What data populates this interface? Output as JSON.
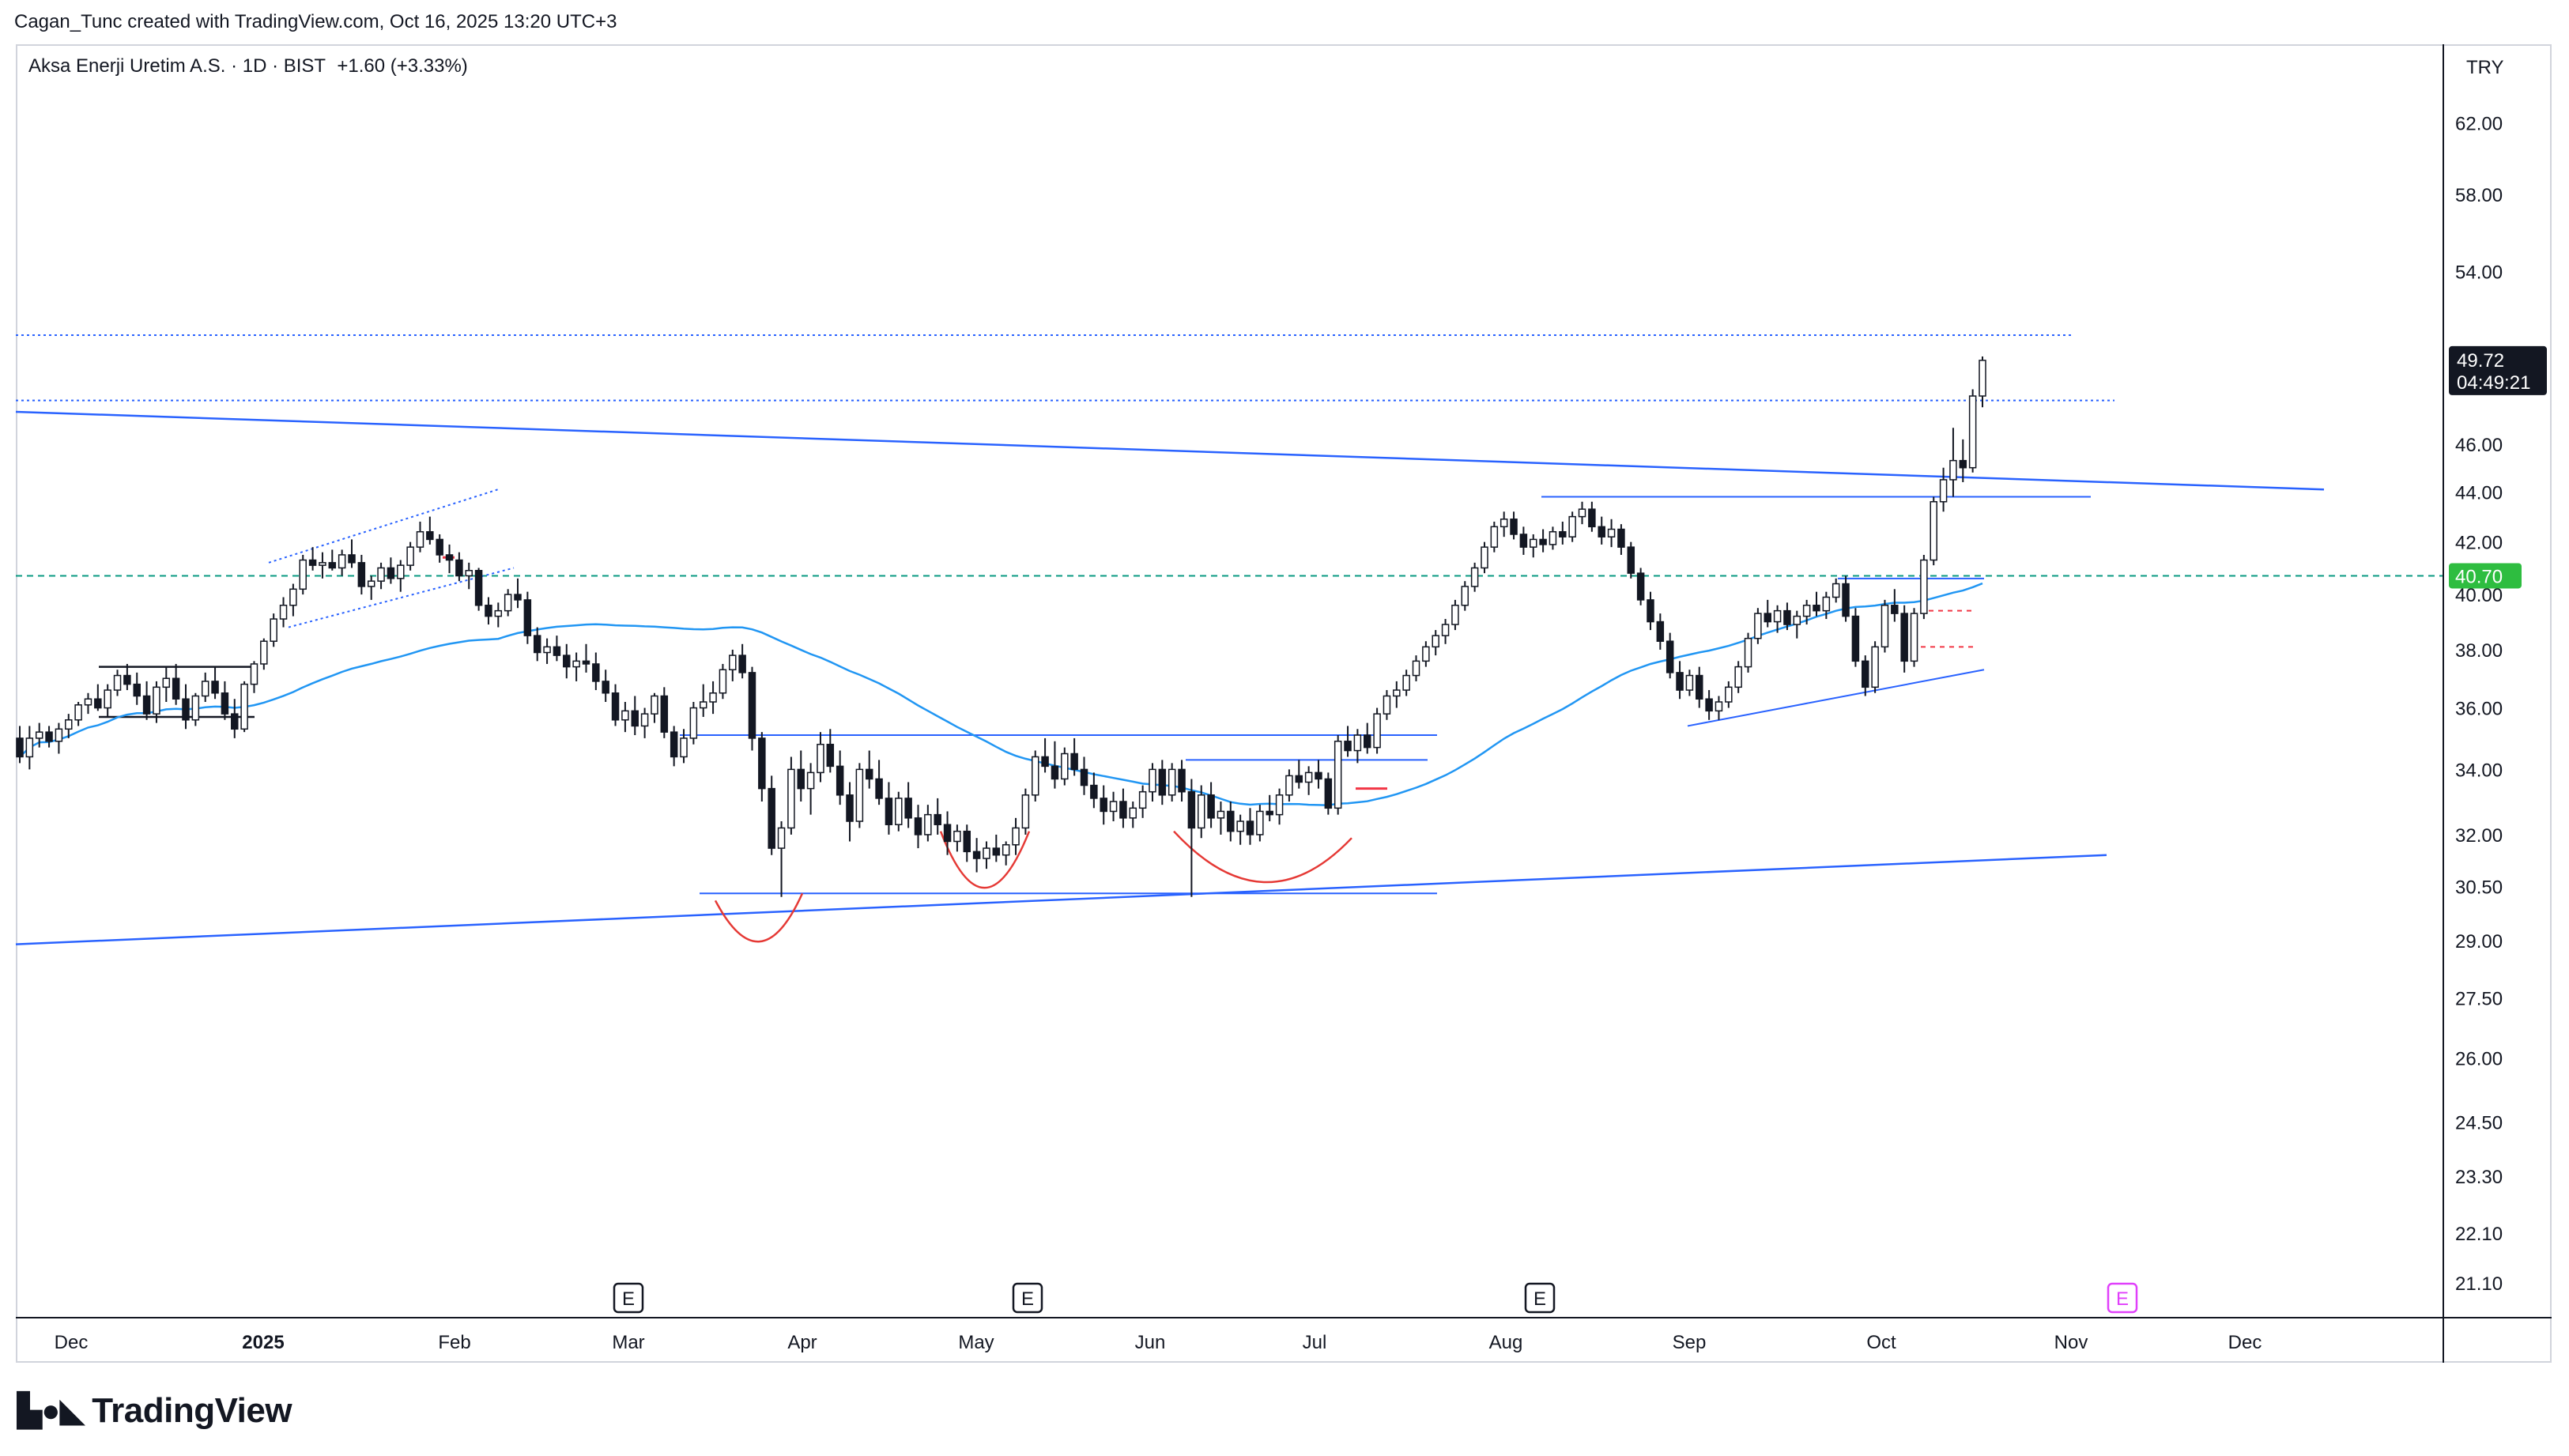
{
  "header": {
    "credit": "Cagan_Tunc created with TradingView.com, Oct 16, 2025 13:20 UTC+3",
    "ticker": "Aksa Enerji Uretim A.S. · 1D · BIST",
    "change": "+1.60 (+3.33%)",
    "currency": "TRY"
  },
  "footer": {
    "brand": "TradingView"
  },
  "colors": {
    "up": "#ffffff",
    "down": "#131722",
    "ma": "#2196f3",
    "trend": "#2962ff",
    "dotted": "#2962ff",
    "green_level": "#089981",
    "red_mark": "#f23645",
    "earnings_future": "#e040fb"
  },
  "chart_data": {
    "type": "candlestick",
    "title": "Aksa Enerji Uretim A.S. · 1D · BIST",
    "scale": "log",
    "y_ticks": [
      "62.00",
      "58.00",
      "54.00",
      "46.00",
      "44.00",
      "42.00",
      "40.00",
      "38.00",
      "36.00",
      "34.00",
      "32.00",
      "30.50",
      "29.00",
      "27.50",
      "26.00",
      "24.50",
      "23.30",
      "22.10",
      "21.10"
    ],
    "x_ticks": [
      "Dec",
      "2025",
      "Feb",
      "Mar",
      "Apr",
      "May",
      "Jun",
      "Jul",
      "Aug",
      "Sep",
      "Oct",
      "Nov",
      "Dec"
    ],
    "last_price": "49.72",
    "countdown": "04:49:21",
    "level_label": "40.70",
    "earnings_markers": [
      "E",
      "E",
      "E",
      "E"
    ],
    "candles_ohlc": [
      [
        35.0,
        35.4,
        34.2,
        34.4
      ],
      [
        34.4,
        35.4,
        34.0,
        35.0
      ],
      [
        35.0,
        35.5,
        34.7,
        35.2
      ],
      [
        35.2,
        35.4,
        34.7,
        34.9
      ],
      [
        34.9,
        35.5,
        34.5,
        35.3
      ],
      [
        35.3,
        35.8,
        35.0,
        35.6
      ],
      [
        35.6,
        36.2,
        35.4,
        36.1
      ],
      [
        36.1,
        36.5,
        35.8,
        36.3
      ],
      [
        36.3,
        36.8,
        35.9,
        36.0
      ],
      [
        36.0,
        36.8,
        35.7,
        36.6
      ],
      [
        36.6,
        37.3,
        36.4,
        37.1
      ],
      [
        37.1,
        37.5,
        36.6,
        36.8
      ],
      [
        36.8,
        37.2,
        36.1,
        36.4
      ],
      [
        36.4,
        36.9,
        35.6,
        35.8
      ],
      [
        35.8,
        36.9,
        35.5,
        36.7
      ],
      [
        36.7,
        37.4,
        36.2,
        37.0
      ],
      [
        37.0,
        37.5,
        36.1,
        36.3
      ],
      [
        36.3,
        36.8,
        35.3,
        35.6
      ],
      [
        35.6,
        36.5,
        35.4,
        36.4
      ],
      [
        36.4,
        37.2,
        36.2,
        36.9
      ],
      [
        36.9,
        37.4,
        36.3,
        36.5
      ],
      [
        36.5,
        36.9,
        35.6,
        35.8
      ],
      [
        35.8,
        36.3,
        35.0,
        35.3
      ],
      [
        35.3,
        36.9,
        35.2,
        36.8
      ],
      [
        36.8,
        37.6,
        36.5,
        37.5
      ],
      [
        37.5,
        38.4,
        37.3,
        38.3
      ],
      [
        38.3,
        39.3,
        38.1,
        39.1
      ],
      [
        39.1,
        39.9,
        38.8,
        39.6
      ],
      [
        39.6,
        40.4,
        39.2,
        40.2
      ],
      [
        40.2,
        41.5,
        40.0,
        41.3
      ],
      [
        41.3,
        41.8,
        40.9,
        41.1
      ],
      [
        41.1,
        41.6,
        40.6,
        41.2
      ],
      [
        41.2,
        41.7,
        40.9,
        41.0
      ],
      [
        41.0,
        41.7,
        40.7,
        41.5
      ],
      [
        41.5,
        42.1,
        41.0,
        41.2
      ],
      [
        41.2,
        41.5,
        40.0,
        40.3
      ],
      [
        40.3,
        40.7,
        39.8,
        40.5
      ],
      [
        40.5,
        41.2,
        40.2,
        41.0
      ],
      [
        41.0,
        41.4,
        40.4,
        40.6
      ],
      [
        40.6,
        41.3,
        40.1,
        41.1
      ],
      [
        41.1,
        42.0,
        40.9,
        41.8
      ],
      [
        41.8,
        42.8,
        41.6,
        42.4
      ],
      [
        42.4,
        43.0,
        41.9,
        42.1
      ],
      [
        42.1,
        42.3,
        41.2,
        41.5
      ],
      [
        41.5,
        41.9,
        40.8,
        41.3
      ],
      [
        41.3,
        41.6,
        40.5,
        40.7
      ],
      [
        40.7,
        41.2,
        40.2,
        40.9
      ],
      [
        40.9,
        41.0,
        39.4,
        39.6
      ],
      [
        39.6,
        39.9,
        38.9,
        39.2
      ],
      [
        39.2,
        39.7,
        38.8,
        39.4
      ],
      [
        39.4,
        40.2,
        39.2,
        40.0
      ],
      [
        40.0,
        40.6,
        39.5,
        39.8
      ],
      [
        39.8,
        40.1,
        38.2,
        38.5
      ],
      [
        38.5,
        38.8,
        37.6,
        37.9
      ],
      [
        37.9,
        38.4,
        37.5,
        38.1
      ],
      [
        38.1,
        38.5,
        37.6,
        37.8
      ],
      [
        37.8,
        38.2,
        37.0,
        37.4
      ],
      [
        37.4,
        37.9,
        36.9,
        37.6
      ],
      [
        37.6,
        38.2,
        37.2,
        37.5
      ],
      [
        37.5,
        37.9,
        36.6,
        36.9
      ],
      [
        36.9,
        37.3,
        36.2,
        36.5
      ],
      [
        36.5,
        36.8,
        35.4,
        35.6
      ],
      [
        35.6,
        36.2,
        35.2,
        35.9
      ],
      [
        35.9,
        36.4,
        35.1,
        35.4
      ],
      [
        35.4,
        36.0,
        35.0,
        35.8
      ],
      [
        35.8,
        36.5,
        35.5,
        36.4
      ],
      [
        36.4,
        36.7,
        35.0,
        35.2
      ],
      [
        35.2,
        35.4,
        34.1,
        34.4
      ],
      [
        34.4,
        35.3,
        34.2,
        35.0
      ],
      [
        35.0,
        36.2,
        34.8,
        36.0
      ],
      [
        36.0,
        36.8,
        35.7,
        36.2
      ],
      [
        36.2,
        36.9,
        35.8,
        36.5
      ],
      [
        36.5,
        37.5,
        36.3,
        37.3
      ],
      [
        37.3,
        38.0,
        36.9,
        37.8
      ],
      [
        37.8,
        38.2,
        37.0,
        37.2
      ],
      [
        37.2,
        37.4,
        34.6,
        35.0
      ],
      [
        35.0,
        35.2,
        33.0,
        33.4
      ],
      [
        33.4,
        33.8,
        31.4,
        31.6
      ],
      [
        31.6,
        32.4,
        30.2,
        32.2
      ],
      [
        32.2,
        34.4,
        32.0,
        34.0
      ],
      [
        34.0,
        34.6,
        33.0,
        33.4
      ],
      [
        33.4,
        34.2,
        32.6,
        33.9
      ],
      [
        33.9,
        35.2,
        33.6,
        34.8
      ],
      [
        34.8,
        35.3,
        33.9,
        34.1
      ],
      [
        34.1,
        34.6,
        32.9,
        33.2
      ],
      [
        33.2,
        33.6,
        31.8,
        32.4
      ],
      [
        32.4,
        34.2,
        32.2,
        34.0
      ],
      [
        34.0,
        34.6,
        33.4,
        33.7
      ],
      [
        33.7,
        34.3,
        32.9,
        33.1
      ],
      [
        33.1,
        33.6,
        32.0,
        32.3
      ],
      [
        32.3,
        33.3,
        32.1,
        33.1
      ],
      [
        33.1,
        33.6,
        32.2,
        32.5
      ],
      [
        32.5,
        32.9,
        31.6,
        32.0
      ],
      [
        32.0,
        32.9,
        31.8,
        32.6
      ],
      [
        32.6,
        33.1,
        32.0,
        32.3
      ],
      [
        32.3,
        32.7,
        31.4,
        31.8
      ],
      [
        31.8,
        32.3,
        31.5,
        32.1
      ],
      [
        32.1,
        32.3,
        31.2,
        31.5
      ],
      [
        31.5,
        31.9,
        30.9,
        31.3
      ],
      [
        31.3,
        31.8,
        31.0,
        31.6
      ],
      [
        31.6,
        32.0,
        31.2,
        31.4
      ],
      [
        31.4,
        31.8,
        31.1,
        31.7
      ],
      [
        31.7,
        32.5,
        31.4,
        32.2
      ],
      [
        32.2,
        33.4,
        32.0,
        33.2
      ],
      [
        33.2,
        34.6,
        33.0,
        34.4
      ],
      [
        34.4,
        35.0,
        33.9,
        34.1
      ],
      [
        34.1,
        34.9,
        33.4,
        33.7
      ],
      [
        33.7,
        34.7,
        33.5,
        34.5
      ],
      [
        34.5,
        35.0,
        33.8,
        34.0
      ],
      [
        34.0,
        34.4,
        33.2,
        33.5
      ],
      [
        33.5,
        33.9,
        32.8,
        33.1
      ],
      [
        33.1,
        33.5,
        32.3,
        32.7
      ],
      [
        32.7,
        33.3,
        32.4,
        33.0
      ],
      [
        33.0,
        33.4,
        32.2,
        32.5
      ],
      [
        32.5,
        33.0,
        32.2,
        32.8
      ],
      [
        32.8,
        33.5,
        32.5,
        33.3
      ],
      [
        33.3,
        34.2,
        33.0,
        34.0
      ],
      [
        34.0,
        34.3,
        32.9,
        33.2
      ],
      [
        33.2,
        34.2,
        33.0,
        34.0
      ],
      [
        34.0,
        34.3,
        33.0,
        33.3
      ],
      [
        33.3,
        33.7,
        30.2,
        32.2
      ],
      [
        32.2,
        33.5,
        31.9,
        33.2
      ],
      [
        33.2,
        33.6,
        32.2,
        32.5
      ],
      [
        32.5,
        33.0,
        32.0,
        32.7
      ],
      [
        32.7,
        33.0,
        31.8,
        32.1
      ],
      [
        32.1,
        32.6,
        31.7,
        32.4
      ],
      [
        32.4,
        32.8,
        31.7,
        32.0
      ],
      [
        32.0,
        32.9,
        31.8,
        32.7
      ],
      [
        32.7,
        33.2,
        32.4,
        32.6
      ],
      [
        32.6,
        33.4,
        32.3,
        33.2
      ],
      [
        33.2,
        34.0,
        33.0,
        33.8
      ],
      [
        33.8,
        34.3,
        33.4,
        33.6
      ],
      [
        33.6,
        34.1,
        33.2,
        33.9
      ],
      [
        33.9,
        34.3,
        33.4,
        33.7
      ],
      [
        33.7,
        33.9,
        32.6,
        32.8
      ],
      [
        32.8,
        35.1,
        32.6,
        34.9
      ],
      [
        34.9,
        35.4,
        34.4,
        34.6
      ],
      [
        34.6,
        35.3,
        34.2,
        35.1
      ],
      [
        35.1,
        35.5,
        34.5,
        34.7
      ],
      [
        34.7,
        36.0,
        34.5,
        35.8
      ],
      [
        35.8,
        36.6,
        35.6,
        36.4
      ],
      [
        36.4,
        36.9,
        36.0,
        36.6
      ],
      [
        36.6,
        37.3,
        36.4,
        37.1
      ],
      [
        37.1,
        37.8,
        36.9,
        37.6
      ],
      [
        37.6,
        38.3,
        37.4,
        38.1
      ],
      [
        38.1,
        38.7,
        37.8,
        38.5
      ],
      [
        38.5,
        39.1,
        38.2,
        38.9
      ],
      [
        38.9,
        39.8,
        38.7,
        39.6
      ],
      [
        39.6,
        40.5,
        39.4,
        40.3
      ],
      [
        40.3,
        41.2,
        40.1,
        41.0
      ],
      [
        41.0,
        42.0,
        40.8,
        41.8
      ],
      [
        41.8,
        42.8,
        41.6,
        42.6
      ],
      [
        42.6,
        43.2,
        42.2,
        42.9
      ],
      [
        42.9,
        43.2,
        42.1,
        42.3
      ],
      [
        42.3,
        42.6,
        41.5,
        41.8
      ],
      [
        41.8,
        42.3,
        41.4,
        42.1
      ],
      [
        42.1,
        42.5,
        41.6,
        41.9
      ],
      [
        41.9,
        42.6,
        41.7,
        42.4
      ],
      [
        42.4,
        42.8,
        41.9,
        42.2
      ],
      [
        42.2,
        43.2,
        42.0,
        43.0
      ],
      [
        43.0,
        43.6,
        42.7,
        43.3
      ],
      [
        43.3,
        43.6,
        42.4,
        42.6
      ],
      [
        42.6,
        43.0,
        41.9,
        42.2
      ],
      [
        42.2,
        42.9,
        41.8,
        42.5
      ],
      [
        42.5,
        42.7,
        41.5,
        41.8
      ],
      [
        41.8,
        42.0,
        40.6,
        40.8
      ],
      [
        40.8,
        41.0,
        39.6,
        39.8
      ],
      [
        39.8,
        40.1,
        38.7,
        39.0
      ],
      [
        39.0,
        39.3,
        38.0,
        38.3
      ],
      [
        38.3,
        38.6,
        37.0,
        37.2
      ],
      [
        37.2,
        37.6,
        36.3,
        36.6
      ],
      [
        36.6,
        37.3,
        36.4,
        37.1
      ],
      [
        37.1,
        37.4,
        36.0,
        36.3
      ],
      [
        36.3,
        36.6,
        35.6,
        35.9
      ],
      [
        35.9,
        36.4,
        35.6,
        36.2
      ],
      [
        36.2,
        36.9,
        36.0,
        36.7
      ],
      [
        36.7,
        37.6,
        36.5,
        37.4
      ],
      [
        37.4,
        38.6,
        37.2,
        38.4
      ],
      [
        38.4,
        39.5,
        38.2,
        39.3
      ],
      [
        39.3,
        39.8,
        38.8,
        39.0
      ],
      [
        39.0,
        39.6,
        38.6,
        39.4
      ],
      [
        39.4,
        39.7,
        38.7,
        38.9
      ],
      [
        38.9,
        39.4,
        38.4,
        39.2
      ],
      [
        39.2,
        39.8,
        38.9,
        39.6
      ],
      [
        39.6,
        40.1,
        39.2,
        39.4
      ],
      [
        39.4,
        40.1,
        39.1,
        39.9
      ],
      [
        39.9,
        40.6,
        39.7,
        40.4
      ],
      [
        40.4,
        40.7,
        39.0,
        39.2
      ],
      [
        39.2,
        39.5,
        37.4,
        37.6
      ],
      [
        37.6,
        37.8,
        36.4,
        36.7
      ],
      [
        36.7,
        38.3,
        36.5,
        38.1
      ],
      [
        38.1,
        39.8,
        37.9,
        39.6
      ],
      [
        39.6,
        40.2,
        39.0,
        39.3
      ],
      [
        39.3,
        39.6,
        37.2,
        37.6
      ],
      [
        37.6,
        39.5,
        37.4,
        39.3
      ],
      [
        39.3,
        41.5,
        39.1,
        41.3
      ],
      [
        41.3,
        43.8,
        41.1,
        43.6
      ],
      [
        43.6,
        45.0,
        43.2,
        44.5
      ],
      [
        44.5,
        46.7,
        43.8,
        45.3
      ],
      [
        45.3,
        46.2,
        44.4,
        45.0
      ],
      [
        45.0,
        48.4,
        44.8,
        48.1
      ],
      [
        48.1,
        49.9,
        47.6,
        49.72
      ]
    ]
  }
}
